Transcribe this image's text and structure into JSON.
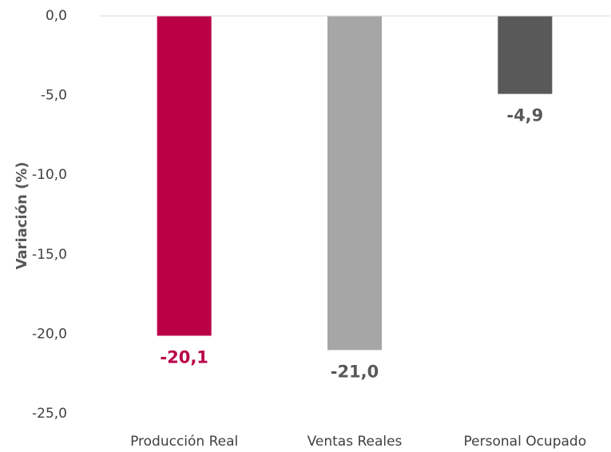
{
  "chart_data": {
    "type": "bar",
    "y_axis_label": "Variación (%)",
    "categories": [
      "Producción Real",
      "Ventas Reales",
      "Personal Ocupado"
    ],
    "values": [
      -20.1,
      -21.0,
      -4.9
    ],
    "value_labels": [
      "-20,1",
      "-21,0",
      "-4,9"
    ],
    "colors": [
      "#ba0047",
      "#a6a6a6",
      "#595959"
    ],
    "value_label_colors": [
      "#ba0047",
      "#595959",
      "#595959"
    ],
    "ylim": [
      -25,
      0
    ],
    "yticks": [
      {
        "value": 0,
        "label": "0,0"
      },
      {
        "value": -5,
        "label": "-5,0"
      },
      {
        "value": -10,
        "label": "-10,0"
      },
      {
        "value": -15,
        "label": "-15,0"
      },
      {
        "value": -20,
        "label": "-20,0"
      },
      {
        "value": -25,
        "label": "-25,0"
      }
    ],
    "grid": false
  }
}
